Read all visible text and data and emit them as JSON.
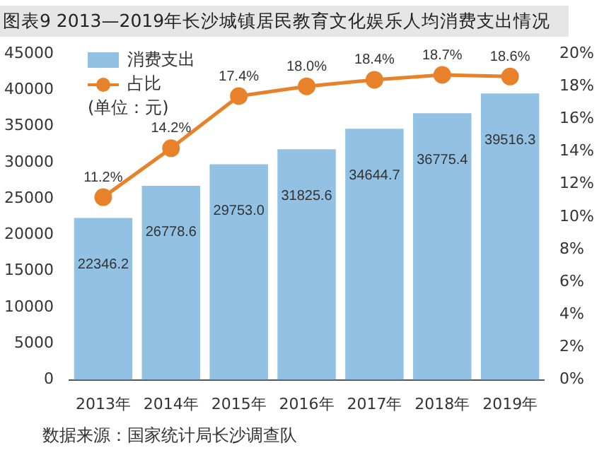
{
  "chart_data": {
    "type": "bar",
    "title": "图表9 2013—2019年长沙城镇居民教育文化娱乐人均消费支出情况",
    "categories": [
      "2013年",
      "2014年",
      "2015年",
      "2016年",
      "2017年",
      "2018年",
      "2019年"
    ],
    "series": [
      {
        "name": "消费支出",
        "color": "#92c1e3",
        "values": [
          22346.2,
          26778.6,
          29753.0,
          31825.6,
          34644.7,
          36775.4,
          39516.3
        ],
        "value_labels": [
          "22346.2",
          "26778.6",
          "29753.0",
          "31825.6",
          "34644.7",
          "36775.4",
          "39516.3"
        ]
      },
      {
        "name": "占比",
        "type": "line",
        "axis": "y2",
        "color": "#e8822a",
        "marker": "circle",
        "values": [
          11.2,
          14.2,
          17.4,
          18.0,
          18.4,
          18.7,
          18.6
        ],
        "value_labels": [
          "11.2%",
          "14.2%",
          "17.4%",
          "18.0%",
          "18.4%",
          "18.7%",
          "18.6%"
        ]
      }
    ],
    "ylim": [
      0,
      45000
    ],
    "yticks": [
      0,
      5000,
      10000,
      15000,
      20000,
      25000,
      30000,
      35000,
      40000,
      45000
    ],
    "y2lim": [
      0,
      20
    ],
    "y2ticks": [
      {
        "value": 0,
        "label": "0%"
      },
      {
        "value": 2,
        "label": "2%"
      },
      {
        "value": 4,
        "label": "4%"
      },
      {
        "value": 6,
        "label": "6%"
      },
      {
        "value": 8,
        "label": "8%"
      },
      {
        "value": 10,
        "label": "10%"
      },
      {
        "value": 12,
        "label": "12%"
      },
      {
        "value": 14,
        "label": "14%"
      },
      {
        "value": 16,
        "label": "16%"
      },
      {
        "value": 18,
        "label": "18%"
      },
      {
        "value": 20,
        "label": "20%"
      }
    ],
    "grid": false,
    "legend": "top left",
    "annotations": [
      "(单位：元)",
      "数据来源：国家统计局长沙调查队"
    ]
  }
}
